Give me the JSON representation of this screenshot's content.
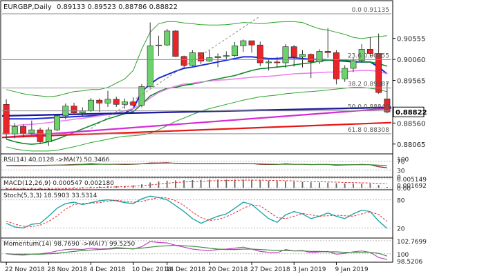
{
  "chart_data": {
    "type": "candlestick",
    "header": {
      "symbol_label": "EURGBP,Daily",
      "ohlc_label": "0.89133 0.89523 0.88786 0.88822"
    },
    "price_axis": {
      "ylim": [
        0.8785,
        0.912
      ],
      "ticks": [
        {
          "value": 0.90555,
          "label": "0.90555"
        },
        {
          "value": 0.9006,
          "label": "0.90060"
        },
        {
          "value": 0.89565,
          "label": "0.89565"
        },
        {
          "value": 0.8856,
          "label": "0.88560"
        },
        {
          "value": 0.88065,
          "label": "0.88065"
        }
      ],
      "current_price": {
        "value": 0.88822,
        "label": "0.88822"
      }
    },
    "fibonacci_levels": [
      {
        "value": 0.91135,
        "label": "0.0 0.91135"
      },
      {
        "value": 0.90055,
        "label": "23.6 0.90055"
      },
      {
        "value": 0.89387,
        "label": "38.2 0.89387"
      },
      {
        "value": 0.88848,
        "label": "50.0 0.88848"
      },
      {
        "value": 0.88308,
        "label": "61.8 0.88308"
      }
    ],
    "x_labels": [
      "22 Nov 2018",
      "28 Nov 2018",
      "4 Dec 2018",
      "10 Dec 2018",
      "14 Dec 2018",
      "20 Dec 2018",
      "27 Dec 2018",
      "3 Jan 2019",
      "9 Jan 2019"
    ],
    "candles": [
      [
        0.89,
        0.8912,
        0.8818,
        0.883
      ],
      [
        0.883,
        0.8856,
        0.882,
        0.8848
      ],
      [
        0.8848,
        0.8853,
        0.8822,
        0.8832
      ],
      [
        0.8832,
        0.8862,
        0.8828,
        0.884
      ],
      [
        0.884,
        0.8845,
        0.8807,
        0.8812
      ],
      [
        0.8812,
        0.8846,
        0.8802,
        0.884
      ],
      [
        0.884,
        0.8878,
        0.8837,
        0.8873
      ],
      [
        0.8873,
        0.8902,
        0.8865,
        0.8896
      ],
      [
        0.8896,
        0.8904,
        0.8875,
        0.888
      ],
      [
        0.888,
        0.8893,
        0.8871,
        0.8885
      ],
      [
        0.8885,
        0.8915,
        0.8882,
        0.891
      ],
      [
        0.891,
        0.8914,
        0.8882,
        0.8903
      ],
      [
        0.8903,
        0.8932,
        0.8894,
        0.8912
      ],
      [
        0.8912,
        0.8918,
        0.8894,
        0.89
      ],
      [
        0.89,
        0.8914,
        0.889,
        0.8906
      ],
      [
        0.8906,
        0.8917,
        0.8896,
        0.8898
      ],
      [
        0.8898,
        0.8948,
        0.8893,
        0.8942
      ],
      [
        0.8942,
        0.9093,
        0.894,
        0.9038
      ],
      [
        0.9038,
        0.9062,
        0.9014,
        0.904
      ],
      [
        0.904,
        0.9078,
        0.9038,
        0.9073
      ],
      [
        0.9073,
        0.9075,
        0.9012,
        0.9013
      ],
      [
        0.9013,
        0.9015,
        0.8986,
        0.8992
      ],
      [
        0.8992,
        0.9028,
        0.899,
        0.9022
      ],
      [
        0.9022,
        0.9022,
        0.8995,
        0.9002
      ],
      [
        0.9002,
        0.9028,
        0.9,
        0.901
      ],
      [
        0.901,
        0.902,
        0.8988,
        0.9013
      ],
      [
        0.9013,
        0.9025,
        0.9005,
        0.9015
      ],
      [
        0.9015,
        0.9047,
        0.9012,
        0.9038
      ],
      [
        0.9038,
        0.9053,
        0.9024,
        0.905
      ],
      [
        0.905,
        0.905,
        0.9022,
        0.904
      ],
      [
        0.904,
        0.9048,
        0.899,
        0.8998
      ],
      [
        0.8998,
        0.9005,
        0.898,
        0.9
      ],
      [
        0.9,
        0.9012,
        0.8986,
        0.8998
      ],
      [
        0.8998,
        0.9042,
        0.8986,
        0.9036
      ],
      [
        0.9036,
        0.904,
        0.8989,
        0.9012
      ],
      [
        0.9012,
        0.9028,
        0.8987,
        0.9018
      ],
      [
        0.9018,
        0.902,
        0.8962,
        0.9
      ],
      [
        0.9,
        0.903,
        0.8995,
        0.9025
      ],
      [
        0.9025,
        0.908,
        0.901,
        0.9022
      ],
      [
        0.9022,
        0.9028,
        0.8947,
        0.896
      ],
      [
        0.896,
        0.8992,
        0.8953,
        0.8985
      ],
      [
        0.8985,
        0.901,
        0.8976,
        0.9003
      ],
      [
        0.9003,
        0.9042,
        0.8998,
        0.903
      ],
      [
        0.903,
        0.9058,
        0.9012,
        0.902
      ],
      [
        0.902,
        0.9067,
        0.8925,
        0.8928
      ],
      [
        0.8913,
        0.8952,
        0.8879,
        0.8882
      ]
    ],
    "overlays": [
      {
        "role": "ma-blue",
        "values": [
          0.8866,
          0.8866,
          0.8866,
          0.8866,
          0.8867,
          0.8868,
          0.8869,
          0.887,
          0.8871,
          0.8872,
          0.8873,
          0.8874,
          0.8876,
          0.8878,
          0.888,
          0.889,
          0.893,
          0.8948,
          0.8962,
          0.897,
          0.8978,
          0.8985,
          0.8988,
          0.8992,
          0.8996,
          0.9,
          0.9004,
          0.9008,
          0.9012,
          0.9012,
          0.901,
          0.9008,
          0.9008,
          0.901,
          0.901,
          0.9008,
          0.9006,
          0.9006,
          0.9005,
          0.9003,
          0.9002,
          0.9,
          0.9,
          0.9,
          0.8988,
          0.8972
        ]
      },
      {
        "role": "ma-green",
        "values": [
          0.8818,
          0.8812,
          0.8808,
          0.8806,
          0.8808,
          0.8812,
          0.8818,
          0.8826,
          0.8834,
          0.8842,
          0.885,
          0.8858,
          0.8866,
          0.8872,
          0.8878,
          0.8883,
          0.89,
          0.892,
          0.893,
          0.8938,
          0.894,
          0.8945,
          0.8948,
          0.8952,
          0.8956,
          0.896,
          0.8964,
          0.8968,
          0.8974,
          0.898,
          0.8984,
          0.8986,
          0.8988,
          0.899,
          0.8993,
          0.8996,
          0.8998,
          0.9002,
          0.9004,
          0.9005,
          0.9004,
          0.9002,
          0.9,
          0.9,
          0.8996,
          0.899
        ]
      },
      {
        "role": "ma-pink",
        "values": [
          0.885,
          0.885,
          0.8852,
          0.8853,
          0.8855,
          0.8857,
          0.886,
          0.8862,
          0.8865,
          0.8867,
          0.887,
          0.8873,
          0.8876,
          0.888,
          0.8885,
          0.889,
          0.89,
          0.8915,
          0.8928,
          0.8936,
          0.8943,
          0.8948,
          0.895,
          0.8953,
          0.8955,
          0.8957,
          0.8958,
          0.896,
          0.8962,
          0.8964,
          0.8965,
          0.8966,
          0.8968,
          0.897,
          0.8972,
          0.8973,
          0.8974,
          0.8975,
          0.8976,
          0.8976,
          0.8977,
          0.8979,
          0.898,
          0.898,
          0.8978,
          0.8972
        ]
      },
      {
        "role": "bb-upper",
        "values": [
          0.8935,
          0.893,
          0.8925,
          0.8922,
          0.892,
          0.8918,
          0.892,
          0.8925,
          0.893,
          0.8932,
          0.8935,
          0.8935,
          0.894,
          0.895,
          0.896,
          0.898,
          0.903,
          0.907,
          0.909,
          0.9095,
          0.9095,
          0.9092,
          0.909,
          0.9088,
          0.9087,
          0.9087,
          0.9088,
          0.909,
          0.9093,
          0.9092,
          0.909,
          0.9092,
          0.9094,
          0.9095,
          0.9095,
          0.9093,
          0.9085,
          0.9078,
          0.9075,
          0.907,
          0.9065,
          0.9058,
          0.9055,
          0.9058,
          0.906,
          0.9062
        ]
      },
      {
        "role": "bb-lower",
        "values": [
          0.88,
          0.8795,
          0.8792,
          0.879,
          0.879,
          0.879,
          0.8792,
          0.8796,
          0.88,
          0.8805,
          0.881,
          0.8814,
          0.8818,
          0.8822,
          0.8825,
          0.8826,
          0.8828,
          0.8832,
          0.884,
          0.885,
          0.886,
          0.8868,
          0.8876,
          0.8884,
          0.889,
          0.8895,
          0.89,
          0.8905,
          0.891,
          0.8914,
          0.8918,
          0.892,
          0.8922,
          0.8925,
          0.8927,
          0.8929,
          0.893,
          0.8932,
          0.8934,
          0.8936,
          0.8938,
          0.894,
          0.894,
          0.8938,
          0.8935,
          0.893
        ]
      },
      {
        "role": "trend-pink",
        "from": 0.8822,
        "to": 0.8891
      },
      {
        "role": "trend-red",
        "from": 0.8822,
        "to": 0.8857
      },
      {
        "role": "trend-navy",
        "from": 0.8873,
        "to": 0.8893
      }
    ],
    "trendline_dashed": {
      "from": [
        10,
        0.8843
      ],
      "to": [
        30,
        0.9108
      ]
    },
    "indicators": [
      {
        "name": "rsi",
        "label": "RSI(14) 40.0128 ->MA(7) 50.3466",
        "ylim": [
          0,
          100
        ],
        "ticks": [
          {
            "value": 70,
            "label": "70"
          },
          {
            "value": 30,
            "label": "30"
          },
          {
            "value": 0,
            "label": "0"
          }
        ],
        "extra_ticks": [
          {
            "value": 100,
            "label": "100"
          }
        ],
        "line": [
          50,
          49,
          49,
          50,
          50,
          51,
          52,
          53,
          55,
          56,
          58,
          57,
          56,
          56,
          55,
          56,
          58,
          62,
          62,
          63,
          60,
          59,
          58,
          58,
          58,
          58,
          58,
          59,
          60,
          59,
          56,
          55,
          55,
          58,
          56,
          56,
          54,
          55,
          55,
          52,
          53,
          54,
          55,
          54,
          45,
          40
        ],
        "ma": [
          51,
          51,
          51,
          51,
          51,
          52,
          52,
          52,
          53,
          54,
          55,
          56,
          56,
          57,
          57,
          57,
          58,
          59,
          60,
          61,
          61,
          60,
          59,
          59,
          59,
          59,
          59,
          59,
          59,
          59,
          58,
          57,
          56,
          56,
          56,
          56,
          55,
          55,
          55,
          54,
          54,
          54,
          54,
          54,
          52,
          50
        ]
      },
      {
        "name": "macd",
        "label": "MACD(12,26,9) 0.000547 0.002180",
        "ylim": [
          -0.0003,
          0.0055
        ],
        "ticks": [
          {
            "value": 0.005149,
            "label": "0.005149"
          },
          {
            "value": 0.0,
            "label": "0.00"
          }
        ],
        "extra_ticks": [
          {
            "value": 0.001692,
            "label": "0.001692"
          }
        ],
        "histogram": [
          -0.0006,
          -0.0007,
          -0.0008,
          -0.0007,
          -0.0007,
          -0.0005,
          -0.0002,
          0.0001,
          0.0003,
          0.0004,
          0.0006,
          0.0008,
          0.0009,
          0.001,
          0.0011,
          0.0014,
          0.002,
          0.003,
          0.0036,
          0.004,
          0.0042,
          0.0043,
          0.0044,
          0.0045,
          0.0046,
          0.0046,
          0.0046,
          0.0046,
          0.0046,
          0.0045,
          0.0043,
          0.004,
          0.0038,
          0.0037,
          0.0035,
          0.0033,
          0.0031,
          0.003,
          0.0029,
          0.0026,
          0.0025,
          0.0024,
          0.0024,
          0.0023,
          0.0016,
          0.0005
        ],
        "signal": [
          -0.0006,
          -0.0006,
          -0.0007,
          -0.0007,
          -0.0007,
          -0.0007,
          -0.0006,
          -0.0005,
          -0.0004,
          -0.0002,
          0.0,
          0.0002,
          0.0004,
          0.0005,
          0.0007,
          0.0009,
          0.0012,
          0.0016,
          0.0021,
          0.0026,
          0.003,
          0.0033,
          0.0035,
          0.0037,
          0.0039,
          0.004,
          0.0041,
          0.0042,
          0.0043,
          0.0043,
          0.0043,
          0.0042,
          0.0041,
          0.004,
          0.0039,
          0.0037,
          0.0036,
          0.0034,
          0.0033,
          0.0032,
          0.003,
          0.0029,
          0.0028,
          0.0027,
          0.0025,
          0.0022
        ]
      },
      {
        "name": "stochastic",
        "label": "Stoch(5,3,3) 18.5903 33.5314",
        "ylim": [
          0,
          100
        ],
        "ticks": [
          {
            "value": 80,
            "label": "80"
          },
          {
            "value": 20,
            "label": "20"
          }
        ],
        "k": [
          30,
          22,
          20,
          28,
          30,
          45,
          62,
          72,
          75,
          70,
          74,
          78,
          80,
          78,
          74,
          72,
          82,
          88,
          85,
          80,
          68,
          55,
          40,
          30,
          38,
          45,
          50,
          62,
          75,
          70,
          55,
          40,
          32,
          48,
          55,
          50,
          40,
          45,
          52,
          45,
          40,
          50,
          58,
          55,
          35,
          19
        ],
        "d": [
          35,
          28,
          24,
          23,
          26,
          34,
          46,
          60,
          70,
          72,
          73,
          74,
          77,
          79,
          77,
          75,
          76,
          81,
          85,
          84,
          78,
          68,
          54,
          42,
          36,
          38,
          44,
          52,
          62,
          69,
          67,
          55,
          42,
          40,
          45,
          51,
          48,
          45,
          46,
          47,
          46,
          45,
          50,
          54,
          49,
          34
        ]
      },
      {
        "name": "momentum",
        "label": "Momentum(14) 98.7690 ->MA(7) 99.5250",
        "ylim": [
          98.2,
          103.2
        ],
        "ticks": [
          {
            "value": 102.7699,
            "label": "102.7699"
          },
          {
            "value": 100,
            "label": "100"
          }
        ],
        "extra_ticks": [
          {
            "value": 98.5206,
            "label": "98.5206"
          }
        ],
        "line": [
          100.0,
          99.8,
          99.7,
          99.9,
          100.0,
          100.2,
          100.6,
          100.9,
          101.0,
          100.9,
          101.2,
          101.0,
          101.1,
          101.3,
          101.2,
          101.0,
          101.5,
          102.6,
          102.4,
          102.3,
          101.8,
          101.4,
          101.0,
          100.8,
          100.7,
          100.9,
          101.0,
          101.2,
          101.4,
          101.0,
          100.5,
          100.3,
          100.2,
          100.9,
          100.6,
          100.7,
          100.2,
          100.4,
          100.5,
          99.9,
          100.1,
          100.4,
          100.6,
          100.3,
          99.2,
          98.77
        ],
        "ma": [
          100.0,
          99.9,
          99.9,
          99.9,
          99.9,
          100.0,
          100.1,
          100.3,
          100.5,
          100.7,
          100.8,
          100.9,
          101.0,
          101.1,
          101.1,
          101.1,
          101.2,
          101.4,
          101.6,
          101.7,
          101.8,
          101.7,
          101.6,
          101.4,
          101.2,
          101.0,
          100.9,
          100.9,
          101.0,
          101.0,
          100.9,
          100.8,
          100.7,
          100.7,
          100.6,
          100.6,
          100.5,
          100.5,
          100.4,
          100.4,
          100.3,
          100.3,
          100.3,
          100.3,
          100.1,
          99.5
        ]
      }
    ],
    "colors": {
      "bull": "#6dd16d",
      "bear": "#e8262a",
      "wick": "#333333",
      "ma_blue": "#1a2bd6",
      "ma_green": "#0f8a2a",
      "ma_pink": "#ee82ee",
      "bb_line": "#27a427",
      "trend_pink": "#d62ad6",
      "trend_red": "#e81515",
      "trend_navy": "#1d1a9c",
      "fib": "#8c8c8c",
      "rsi_line": "#8b1a1a",
      "rsi_ma": "#3c8c3c",
      "macd_hist": "#666666",
      "macd_signal": "#e23030",
      "stoch_k": "#1aa7a7",
      "stoch_d": "#e23030",
      "mom_line": "#c040c0",
      "mom_ma": "#3c8c3c",
      "text": "#222222"
    }
  }
}
